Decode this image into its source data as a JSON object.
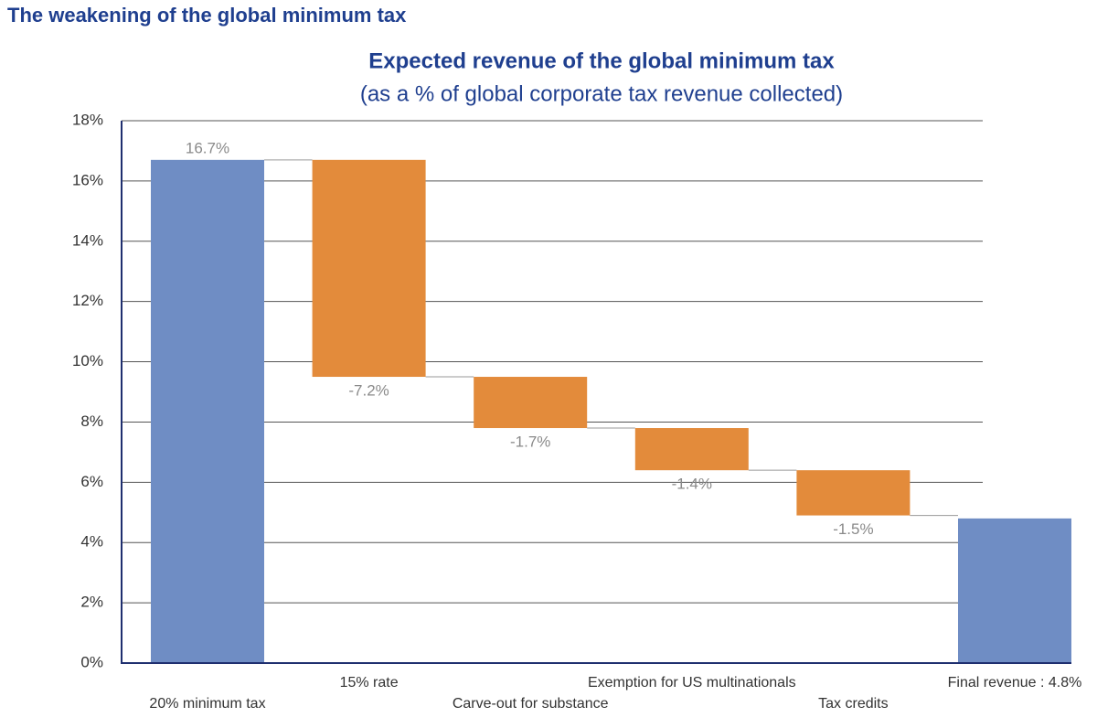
{
  "header": "The weakening of the global minimum tax",
  "chart_data": {
    "type": "waterfall",
    "title": "Expected revenue of the global minimum tax",
    "subtitle": "(as a % of global corporate tax revenue collected)",
    "categories": [
      "20% minimum tax",
      "15% rate",
      "Carve-out for substance",
      "Exemption for US multinationals",
      "Tax credits",
      "Final revenue : 4.8%"
    ],
    "values": [
      16.7,
      -7.2,
      -1.7,
      -1.4,
      -1.5,
      4.8
    ],
    "value_labels": [
      "16.7%",
      "-7.2%",
      "-1.7%",
      "-1.4%",
      "-1.5%",
      null
    ],
    "measure": [
      "absolute",
      "relative",
      "relative",
      "relative",
      "relative",
      "total"
    ],
    "colors": {
      "absolute": "#6f8dc4",
      "relative": "#e38b3b",
      "total": "#6f8dc4"
    },
    "ylim": [
      0,
      18
    ],
    "yticks": [
      {
        "value": 0,
        "label": "0%"
      },
      {
        "value": 2,
        "label": "2%"
      },
      {
        "value": 4,
        "label": "4%"
      },
      {
        "value": 6,
        "label": "6%"
      },
      {
        "value": 8,
        "label": "8%"
      },
      {
        "value": 10,
        "label": "10%"
      },
      {
        "value": 12,
        "label": "12%"
      },
      {
        "value": 14,
        "label": "14%"
      },
      {
        "value": 16,
        "label": "16%"
      },
      {
        "value": 18,
        "label": "18%"
      }
    ],
    "grid": true
  }
}
